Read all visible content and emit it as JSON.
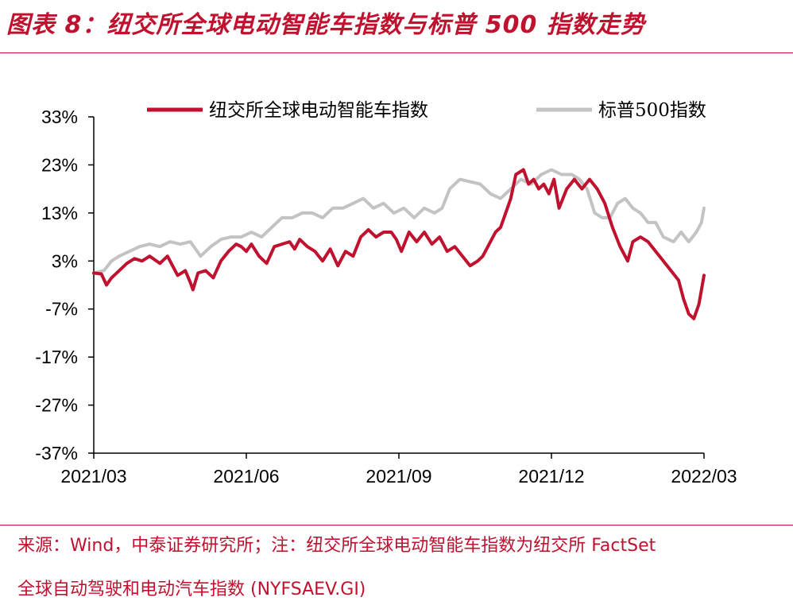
{
  "header": {
    "title": "图表 8：纽交所全球电动智能车指数与标普 500 指数走势"
  },
  "footer": {
    "source_line1": "来源：Wind，中泰证券研究所；注：纽交所全球电动智能车指数为纽交所 FactSet",
    "source_line2": "全球自动驾驶和电动汽车指数 (NYFSAEV.GI)"
  },
  "colors": {
    "accent": "#c0112f",
    "ev_series": "#c0112f",
    "sp_series": "#c3c3c3"
  },
  "chart_data": {
    "type": "line",
    "title": "纽交所全球电动智能车指数与标普 500 指数走势",
    "xlabel": "",
    "ylabel": "",
    "ylim": [
      -37,
      33
    ],
    "yticks": [
      "33%",
      "23%",
      "13%",
      "3%",
      "-7%",
      "-17%",
      "-27%",
      "-37%"
    ],
    "ytick_values": [
      33,
      23,
      13,
      3,
      -7,
      -17,
      -27,
      -37
    ],
    "xlim": [
      0,
      12
    ],
    "xticks": [
      "2021/03",
      "2021/06",
      "2021/09",
      "2021/12",
      "2022/03"
    ],
    "xtick_values": [
      0,
      3,
      6,
      9,
      12
    ],
    "legend_position": "top",
    "grid": false,
    "series": [
      {
        "name": "纽交所全球电动智能车指数",
        "color": "#c0112f",
        "x": [
          0,
          0.15,
          0.25,
          0.35,
          0.5,
          0.65,
          0.8,
          0.95,
          1.1,
          1.3,
          1.45,
          1.55,
          1.65,
          1.8,
          1.9,
          1.95,
          2.05,
          2.2,
          2.35,
          2.5,
          2.65,
          2.8,
          2.9,
          3.0,
          3.1,
          3.25,
          3.4,
          3.55,
          3.7,
          3.85,
          3.95,
          4.05,
          4.2,
          4.35,
          4.5,
          4.65,
          4.8,
          4.95,
          5.1,
          5.25,
          5.4,
          5.55,
          5.7,
          5.85,
          5.95,
          6.05,
          6.2,
          6.35,
          6.5,
          6.65,
          6.8,
          6.95,
          7.1,
          7.25,
          7.4,
          7.55,
          7.65,
          7.8,
          7.9,
          8.0,
          8.1,
          8.2,
          8.3,
          8.45,
          8.55,
          8.65,
          8.75,
          8.85,
          8.95,
          9.05,
          9.15,
          9.3,
          9.45,
          9.6,
          9.75,
          9.9,
          10.05,
          10.2,
          10.35,
          10.5,
          10.6,
          10.75,
          10.9,
          11.05,
          11.2,
          11.35,
          11.5,
          11.6,
          11.7,
          11.8,
          11.9,
          12.0
        ],
        "values": [
          0.5,
          0.3,
          -2,
          -0.5,
          1,
          2.5,
          3.5,
          3,
          4,
          2.5,
          4,
          2,
          0,
          1,
          -1.5,
          -3,
          0.5,
          1,
          -0.5,
          3,
          5,
          6.5,
          6,
          5,
          6.5,
          4,
          2.5,
          6,
          6.5,
          7,
          5.5,
          7.5,
          6,
          5,
          3,
          5.5,
          2,
          5,
          4,
          8,
          9.5,
          8,
          9,
          9,
          7.5,
          5,
          9,
          7,
          9,
          6.5,
          8,
          5,
          6,
          4,
          2,
          3,
          4,
          7,
          9,
          10,
          13,
          16,
          21,
          22,
          19,
          20,
          18,
          19,
          17,
          20,
          14,
          18,
          20,
          18,
          20,
          18,
          15,
          10,
          6,
          3,
          7,
          8,
          7,
          5,
          3,
          1,
          -1,
          -5,
          -8,
          -9,
          -6,
          0
        ]
      },
      {
        "name": "标普500指数",
        "color": "#c3c3c3",
        "x": [
          0,
          0.2,
          0.35,
          0.5,
          0.7,
          0.9,
          1.1,
          1.3,
          1.5,
          1.7,
          1.9,
          2.1,
          2.3,
          2.5,
          2.7,
          2.9,
          3.1,
          3.3,
          3.5,
          3.7,
          3.9,
          4.1,
          4.3,
          4.5,
          4.7,
          4.9,
          5.1,
          5.3,
          5.5,
          5.7,
          5.9,
          6.1,
          6.3,
          6.5,
          6.7,
          6.85,
          7.0,
          7.2,
          7.4,
          7.6,
          7.8,
          8.0,
          8.2,
          8.4,
          8.6,
          8.8,
          9.0,
          9.2,
          9.4,
          9.55,
          9.7,
          9.85,
          10.0,
          10.15,
          10.3,
          10.45,
          10.6,
          10.75,
          10.9,
          11.05,
          11.2,
          11.4,
          11.55,
          11.7,
          11.85,
          11.95,
          12.0
        ],
        "values": [
          0.5,
          1,
          3,
          4,
          5,
          6,
          6.5,
          6,
          7,
          6.5,
          7,
          4,
          6,
          7.5,
          8,
          8,
          9,
          8,
          10,
          12,
          12,
          13,
          13,
          12,
          14,
          14,
          15,
          16,
          14,
          15,
          13,
          14,
          12,
          14,
          13,
          14,
          18,
          20,
          19.5,
          19,
          17,
          16,
          18,
          20,
          19,
          21,
          22,
          21,
          21,
          20,
          18,
          13,
          12,
          12,
          15,
          16,
          14,
          13,
          11,
          11,
          8,
          7,
          9,
          7,
          9,
          11,
          14
        ]
      }
    ]
  }
}
